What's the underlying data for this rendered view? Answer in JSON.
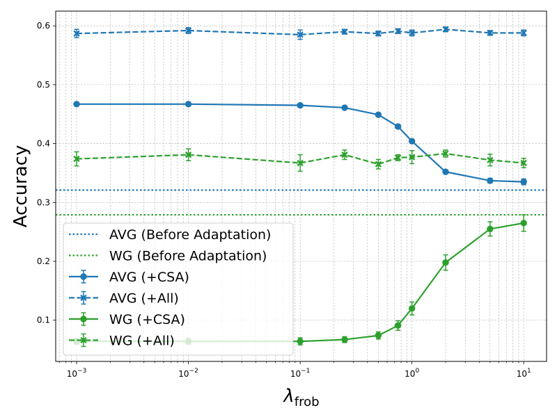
{
  "chart_data": {
    "type": "line",
    "xscale": "log",
    "xlim": [
      0.00065,
      16
    ],
    "ylim": [
      0.03,
      0.625
    ],
    "xlabel_base": "λ",
    "xlabel_sub": "frob",
    "ylabel": "Accuracy",
    "grid": true,
    "legend_placement": "lower-left",
    "x_ticks": [
      {
        "value": 0.001,
        "base": "10",
        "exp": "−3"
      },
      {
        "value": 0.01,
        "base": "10",
        "exp": "−2"
      },
      {
        "value": 0.1,
        "base": "10",
        "exp": "−1"
      },
      {
        "value": 1,
        "base": "10",
        "exp": "0"
      },
      {
        "value": 10,
        "base": "10",
        "exp": "1"
      }
    ],
    "y_ticks": [
      {
        "value": 0.1,
        "label": "0.1"
      },
      {
        "value": 0.2,
        "label": "0.2"
      },
      {
        "value": 0.3,
        "label": "0.3"
      },
      {
        "value": 0.4,
        "label": "0.4"
      },
      {
        "value": 0.5,
        "label": "0.5"
      },
      {
        "value": 0.6,
        "label": "0.6"
      }
    ],
    "baselines": [
      {
        "name": "AVG (Before Adaptation)",
        "value": 0.321,
        "color": "#1f77b4",
        "style": "dotted"
      },
      {
        "name": "WG (Before Adaptation)",
        "value": 0.279,
        "color": "#2ca02c",
        "style": "dotted"
      }
    ],
    "x": [
      0.001,
      0.01,
      0.1,
      0.25,
      0.5,
      0.75,
      1,
      2,
      5,
      10
    ],
    "series": [
      {
        "name": "AVG (+CSA)",
        "color": "#1f77b4",
        "style": "solid",
        "marker": "circle",
        "values": [
          0.467,
          0.467,
          0.465,
          0.461,
          0.449,
          0.429,
          0.404,
          0.352,
          0.337,
          0.335
        ],
        "errors": [
          0.002,
          0.002,
          0.002,
          0.002,
          0.003,
          0.003,
          0.003,
          0.003,
          0.004,
          0.005
        ]
      },
      {
        "name": "AVG (+All)",
        "color": "#1f77b4",
        "style": "dashed",
        "marker": "x",
        "values": [
          0.587,
          0.592,
          0.585,
          0.59,
          0.587,
          0.591,
          0.588,
          0.594,
          0.588,
          0.588
        ],
        "errors": [
          0.007,
          0.005,
          0.008,
          0.004,
          0.004,
          0.004,
          0.005,
          0.004,
          0.004,
          0.005
        ]
      },
      {
        "name": "WG (+CSA)",
        "color": "#2ca02c",
        "style": "solid",
        "marker": "circle",
        "values": [
          0.064,
          0.064,
          0.064,
          0.067,
          0.074,
          0.091,
          0.12,
          0.198,
          0.255,
          0.265
        ],
        "errors": [
          0.005,
          0.005,
          0.006,
          0.005,
          0.006,
          0.008,
          0.011,
          0.013,
          0.012,
          0.014
        ]
      },
      {
        "name": "WG (+All)",
        "color": "#2ca02c",
        "style": "dashed",
        "marker": "x",
        "values": [
          0.374,
          0.381,
          0.367,
          0.381,
          0.365,
          0.376,
          0.377,
          0.383,
          0.372,
          0.367
        ],
        "errors": [
          0.012,
          0.01,
          0.014,
          0.008,
          0.008,
          0.005,
          0.011,
          0.006,
          0.01,
          0.008
        ]
      }
    ]
  }
}
